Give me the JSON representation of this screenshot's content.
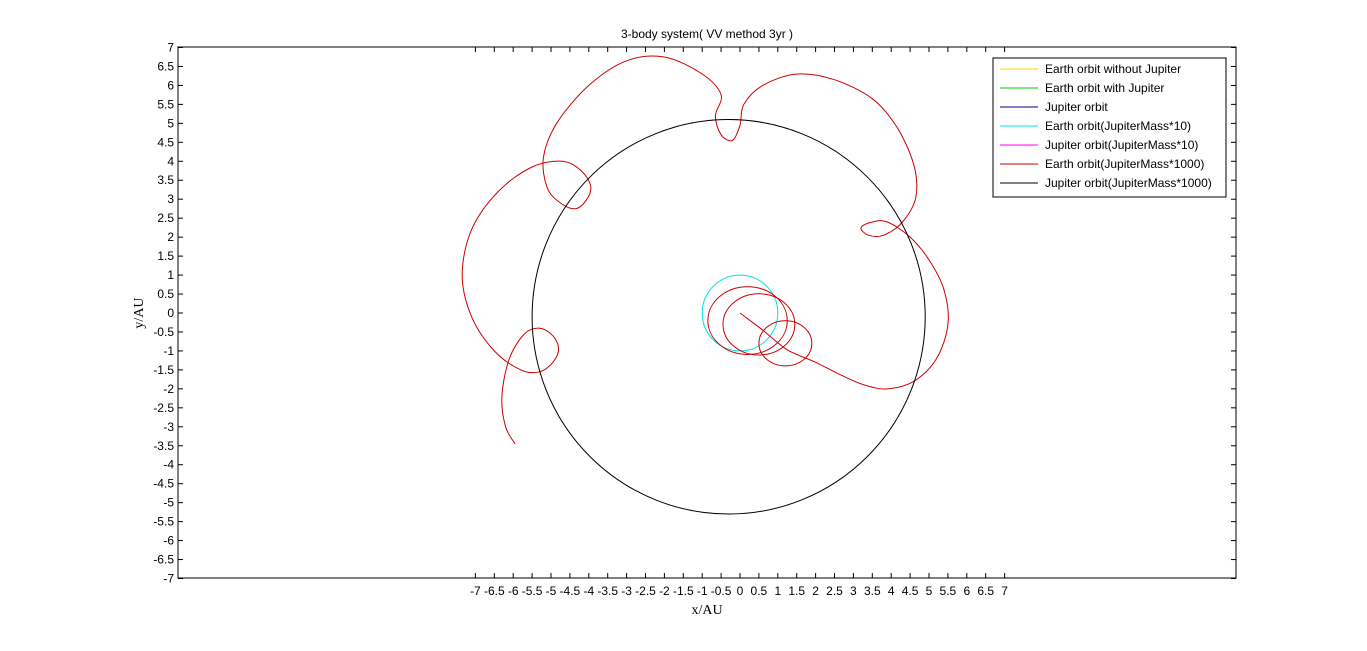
{
  "chart_data": {
    "type": "line",
    "title": "3-body system( VV method 3yr )",
    "xlabel": "x/AU",
    "ylabel": "y/AU",
    "xlim": [
      -7,
      7
    ],
    "ylim": [
      -7,
      7
    ],
    "x_ticks": [
      -7,
      -6.5,
      -6,
      -5.5,
      -5,
      -4.5,
      -4,
      -3.5,
      -3,
      -2.5,
      -2,
      -1.5,
      -1,
      -0.5,
      0,
      0.5,
      1,
      1.5,
      2,
      2.5,
      3,
      3.5,
      4,
      4.5,
      5,
      5.5,
      6,
      6.5,
      7
    ],
    "y_ticks": [
      7,
      6.5,
      6,
      5.5,
      5,
      4.5,
      4,
      3.5,
      3,
      2.5,
      2,
      1.5,
      1,
      0.5,
      0,
      -0.5,
      -1,
      -1.5,
      -2,
      -2.5,
      -3,
      -3.5,
      -4,
      -4.5,
      -5,
      -5.5,
      -6,
      -6.5,
      -7
    ],
    "grid": false,
    "legend_position": "top-right",
    "series": [
      {
        "name": "Earth orbit without Jupiter",
        "color": "#ffd700",
        "shape": "circle",
        "center": [
          0,
          0
        ],
        "radius": 1.0,
        "visible_in_plot": false
      },
      {
        "name": "Earth orbit with Jupiter",
        "color": "#00c800",
        "shape": "circle",
        "center": [
          0,
          0
        ],
        "radius": 1.0,
        "visible_in_plot": false
      },
      {
        "name": "Jupiter orbit",
        "color": "#000080",
        "shape": "circle",
        "center": [
          -0.3,
          -0.1
        ],
        "radius": 5.2,
        "visible_in_plot": false
      },
      {
        "name": "Earth orbit(JupiterMass*10)",
        "color": "#00e0e0",
        "shape": "circle",
        "center": [
          0,
          0
        ],
        "radius": 1.0,
        "visible_in_plot": true
      },
      {
        "name": "Jupiter orbit(JupiterMass*10)",
        "color": "#ff00ff",
        "shape": "circle",
        "center": [
          -0.3,
          -0.1
        ],
        "radius": 5.2,
        "visible_in_plot": false
      },
      {
        "name": "Earth orbit(JupiterMass*1000)",
        "color": "#cc0000",
        "shape": "path",
        "visible_in_plot": true,
        "points": [
          [
            0,
            0
          ],
          [
            0.2,
            -0.15
          ],
          [
            0.6,
            -0.45
          ],
          [
            0.9,
            -0.7
          ],
          [
            1.3,
            -1.0
          ],
          [
            2.0,
            -1.3
          ],
          [
            2.7,
            -1.65
          ],
          [
            3.3,
            -1.9
          ],
          [
            3.9,
            -2.0
          ],
          [
            4.6,
            -1.8
          ],
          [
            5.2,
            -1.2
          ],
          [
            5.5,
            -0.3
          ],
          [
            5.4,
            0.6
          ],
          [
            5.0,
            1.4
          ],
          [
            4.5,
            2.0
          ],
          [
            3.9,
            2.4
          ],
          [
            3.5,
            2.4
          ],
          [
            3.2,
            2.25
          ],
          [
            3.4,
            2.05
          ],
          [
            3.8,
            2.05
          ],
          [
            4.3,
            2.4
          ],
          [
            4.65,
            3.05
          ],
          [
            4.6,
            3.9
          ],
          [
            4.15,
            4.9
          ],
          [
            3.5,
            5.65
          ],
          [
            2.5,
            6.15
          ],
          [
            1.5,
            6.3
          ],
          [
            0.6,
            6.0
          ],
          [
            0.1,
            5.5
          ],
          [
            0.0,
            4.95
          ],
          [
            -0.2,
            4.55
          ],
          [
            -0.5,
            4.7
          ],
          [
            -0.65,
            5.2
          ],
          [
            -0.5,
            5.75
          ],
          [
            -1.0,
            6.3
          ],
          [
            -2.0,
            6.75
          ],
          [
            -3.0,
            6.65
          ],
          [
            -4.0,
            6.0
          ],
          [
            -4.85,
            5.0
          ],
          [
            -5.2,
            4.1
          ],
          [
            -5.1,
            3.3
          ],
          [
            -4.75,
            2.9
          ],
          [
            -4.35,
            2.75
          ],
          [
            -4.05,
            3.0
          ],
          [
            -3.95,
            3.35
          ],
          [
            -4.2,
            3.75
          ],
          [
            -4.7,
            4.0
          ],
          [
            -5.5,
            3.85
          ],
          [
            -6.4,
            3.2
          ],
          [
            -7.1,
            2.2
          ],
          [
            -7.35,
            1.0
          ],
          [
            -7.1,
            -0.1
          ],
          [
            -6.5,
            -1.0
          ],
          [
            -5.8,
            -1.5
          ],
          [
            -5.3,
            -1.55
          ],
          [
            -4.95,
            -1.3
          ],
          [
            -4.8,
            -0.95
          ],
          [
            -4.95,
            -0.6
          ],
          [
            -5.3,
            -0.4
          ],
          [
            -5.7,
            -0.55
          ],
          [
            -6.1,
            -1.2
          ],
          [
            -6.3,
            -2.2
          ],
          [
            -6.2,
            -3.0
          ],
          [
            -5.95,
            -3.45
          ]
        ]
      },
      {
        "name": "Jupiter orbit(JupiterMass*1000)",
        "color": "#000000",
        "shape": "circle",
        "center": [
          -0.3,
          -0.1
        ],
        "radius": 5.2,
        "visible_in_plot": true
      }
    ],
    "inner_red_loops": [
      {
        "center": [
          0.5,
          -0.3
        ],
        "radius": 0.95
      },
      {
        "center": [
          1.2,
          -0.8
        ],
        "radius": 0.7
      },
      {
        "center": [
          0.2,
          -0.2
        ],
        "radius": 1.05
      }
    ]
  }
}
